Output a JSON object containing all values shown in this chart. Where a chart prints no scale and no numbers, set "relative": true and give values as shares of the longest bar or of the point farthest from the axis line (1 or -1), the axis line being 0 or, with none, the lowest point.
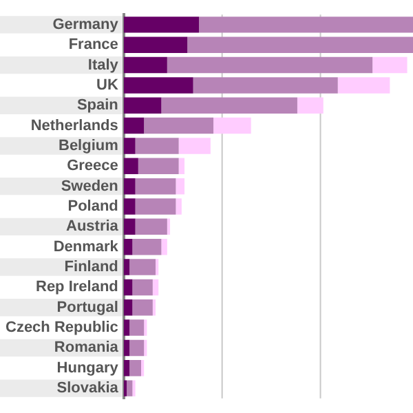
{
  "chart_data": {
    "type": "bar",
    "orientation": "horizontal",
    "stacked": true,
    "relative": true,
    "ref_lines": [
      {
        "axis": "x",
        "value": 0.34,
        "color": "#c8c8c8"
      },
      {
        "axis": "x",
        "value": 0.68,
        "color": "#c8c8c8"
      }
    ],
    "categories": [
      "Germany",
      "France",
      "Italy",
      "UK",
      "Spain",
      "Netherlands",
      "Belgium",
      "Greece",
      "Sweden",
      "Poland",
      "Austria",
      "Denmark",
      "Finland",
      "Rep Ireland",
      "Portugal",
      "Czech Republic",
      "Romania",
      "Hungary",
      "Slovakia"
    ],
    "series": [
      {
        "color": "#660066",
        "values": [
          0.26,
          0.22,
          0.15,
          0.24,
          0.13,
          0.07,
          0.04,
          0.05,
          0.04,
          0.04,
          0.04,
          0.03,
          0.02,
          0.03,
          0.03,
          0.02,
          0.02,
          0.02,
          0.01
        ]
      },
      {
        "color": "#b784b7",
        "values": [
          0.74,
          0.78,
          0.71,
          0.5,
          0.47,
          0.24,
          0.15,
          0.14,
          0.14,
          0.14,
          0.11,
          0.1,
          0.09,
          0.07,
          0.07,
          0.05,
          0.05,
          0.04,
          0.02
        ]
      },
      {
        "color": "#ffccff",
        "values": [
          0,
          0,
          0.12,
          0.18,
          0.09,
          0.13,
          0.11,
          0.02,
          0.03,
          0.02,
          0.01,
          0.02,
          0.01,
          0.02,
          0.01,
          0.01,
          0.01,
          0.01,
          0.01
        ]
      }
    ]
  }
}
